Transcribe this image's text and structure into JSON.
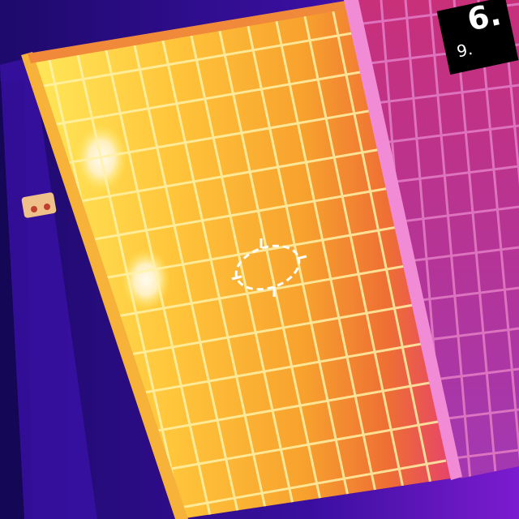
{
  "thermal_view": {
    "palette": {
      "cold": "#2a0e8c",
      "cool": "#7a19c9",
      "warm": "#f26a2a",
      "hot": "#ffd84a",
      "hottest": "#fff4e0",
      "frame_edge": "#f28bd6"
    },
    "spot_marker_icon": "crosshair-ellipse-icon"
  },
  "temperature_readout": {
    "value": "6.",
    "secondary": "9."
  }
}
